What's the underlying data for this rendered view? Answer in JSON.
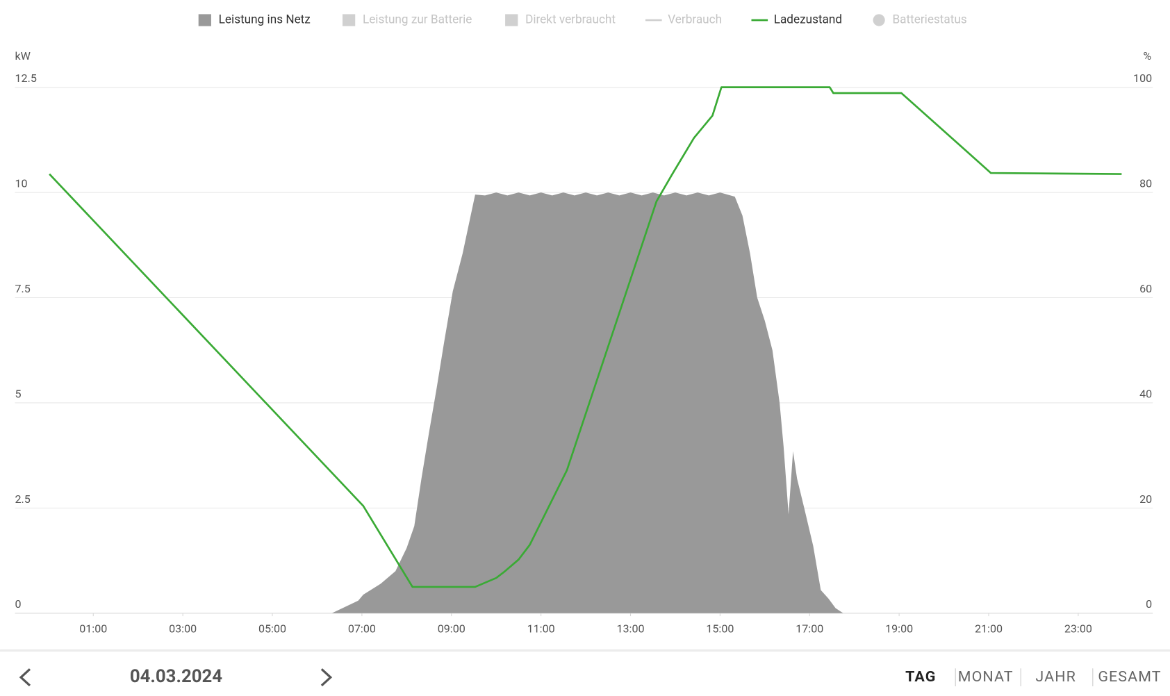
{
  "chart_data": {
    "type": "area-line",
    "y_unit": "kW",
    "y2_unit": "%",
    "xlim": [
      0,
      24
    ],
    "xticks": [
      {
        "value": 1,
        "label": "01:00"
      },
      {
        "value": 3,
        "label": "03:00"
      },
      {
        "value": 5,
        "label": "05:00"
      },
      {
        "value": 7,
        "label": "07:00"
      },
      {
        "value": 9,
        "label": "09:00"
      },
      {
        "value": 11,
        "label": "11:00"
      },
      {
        "value": 13,
        "label": "13:00"
      },
      {
        "value": 15,
        "label": "15:00"
      },
      {
        "value": 17,
        "label": "17:00"
      },
      {
        "value": 19,
        "label": "19:00"
      },
      {
        "value": 21,
        "label": "21:00"
      },
      {
        "value": 23,
        "label": "23:00"
      }
    ],
    "ylim": [
      0,
      12.5
    ],
    "yticks": [
      0,
      2.5,
      5,
      7.5,
      10,
      12.5
    ],
    "y2lim": [
      0,
      100
    ],
    "y2ticks": [
      0,
      20,
      40,
      60,
      80,
      100
    ],
    "grid": true,
    "legend": [
      {
        "name": "Leistung ins Netz",
        "marker": "square",
        "color": "#999999",
        "active": true
      },
      {
        "name": "Leistung zur Batterie",
        "marker": "square",
        "color": "#d0d0d0",
        "active": false
      },
      {
        "name": "Direkt verbraucht",
        "marker": "square",
        "color": "#d0d0d0",
        "active": false
      },
      {
        "name": "Verbrauch",
        "marker": "line",
        "color": "#d0d0d0",
        "active": false
      },
      {
        "name": "Ladezustand",
        "marker": "line",
        "color": "#3aaa35",
        "active": true
      },
      {
        "name": "Batteriestatus",
        "marker": "circle",
        "color": "#d0d0d0",
        "active": false
      }
    ],
    "series": [
      {
        "name": "Leistung ins Netz",
        "kind": "area",
        "color": "#999999",
        "x": [
          6.33,
          6.92,
          7.03,
          7.42,
          7.75,
          8.0,
          8.17,
          8.33,
          8.5,
          8.67,
          8.83,
          9.03,
          9.25,
          9.42,
          9.53,
          9.75,
          10.0,
          10.25,
          10.5,
          10.75,
          11.0,
          11.25,
          11.5,
          11.75,
          12.0,
          12.25,
          12.5,
          12.75,
          13.0,
          13.25,
          13.5,
          13.75,
          14.0,
          14.25,
          14.5,
          14.75,
          15.0,
          15.33,
          15.5,
          15.67,
          15.83,
          16.0,
          16.17,
          16.33,
          16.42,
          16.53,
          16.63,
          16.72,
          16.88,
          17.08,
          17.25,
          17.42,
          17.58,
          17.75
        ],
        "values": [
          0,
          0.3,
          0.44,
          0.7,
          1.0,
          1.55,
          2.07,
          3.2,
          4.3,
          5.35,
          6.4,
          7.65,
          8.55,
          9.4,
          9.95,
          9.93,
          10.0,
          9.93,
          10.0,
          9.93,
          10.0,
          9.93,
          10.0,
          9.93,
          10.0,
          9.93,
          10.0,
          9.93,
          10.0,
          9.93,
          10.0,
          9.93,
          10.0,
          9.93,
          10.0,
          9.93,
          10.0,
          9.9,
          9.45,
          8.55,
          7.5,
          6.95,
          6.25,
          5.0,
          3.95,
          2.35,
          3.85,
          3.2,
          2.5,
          1.6,
          0.55,
          0.35,
          0.12,
          0
        ]
      },
      {
        "name": "Ladezustand",
        "kind": "line",
        "axis": "y2",
        "color": "#3aaa35",
        "x": [
          0.02,
          7.03,
          8.13,
          9.53,
          10.0,
          10.17,
          10.5,
          10.75,
          11.58,
          13.58,
          13.92,
          14.42,
          14.83,
          15.03,
          17.45,
          17.53,
          19.05,
          21.05,
          23.97
        ],
        "values": [
          83.5,
          20.4,
          5.0,
          5.0,
          6.7,
          7.8,
          10.2,
          13.0,
          27.2,
          78.3,
          83.3,
          90.4,
          94.6,
          100,
          100,
          98.9,
          98.9,
          83.7,
          83.5
        ]
      }
    ]
  },
  "navigation": {
    "date": "04.03.2024",
    "periods": [
      "TAG",
      "MONAT",
      "JAHR",
      "GESAMT"
    ],
    "active_period": "TAG"
  }
}
